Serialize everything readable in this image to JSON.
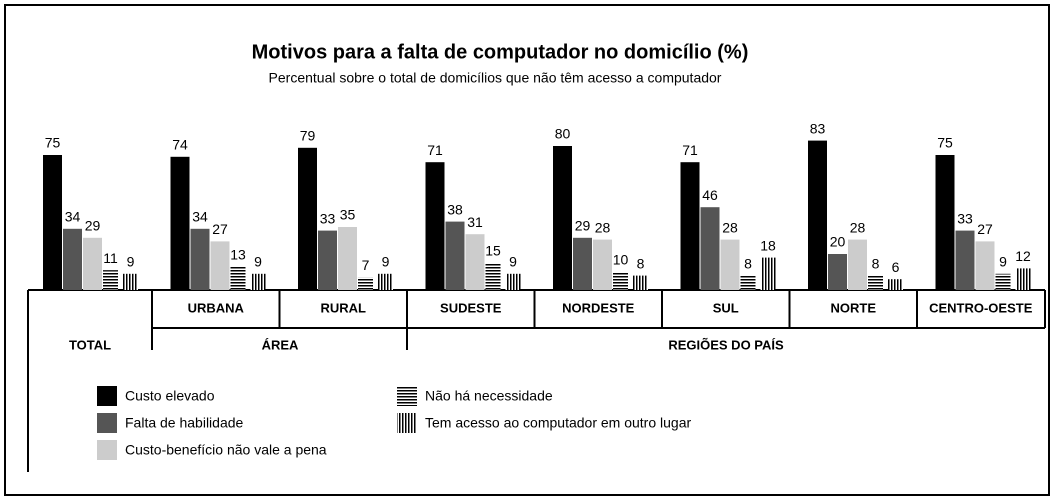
{
  "chart_data": {
    "type": "bar",
    "title": "Motivos para a falta de computador no domicílio (%)",
    "subtitle": "Percentual sobre o total de domicílios que não têm acesso a computador",
    "categories": [
      "TOTAL",
      "URBANA",
      "RURAL",
      "SUDESTE",
      "NORDESTE",
      "SUL",
      "NORTE",
      "CENTRO-OESTE"
    ],
    "groups": [
      "ÁREA",
      "REGIÕES DO PAÍS"
    ],
    "series": [
      {
        "name": "Custo elevado",
        "color": "#000000",
        "values": [
          75,
          74,
          79,
          71,
          80,
          71,
          83,
          75
        ]
      },
      {
        "name": "Falta de habilidade",
        "color": "#555555",
        "values": [
          34,
          34,
          33,
          38,
          29,
          46,
          20,
          33
        ]
      },
      {
        "name": "Custo-benefício não vale a pena",
        "color": "#cccccc",
        "values": [
          29,
          27,
          35,
          31,
          28,
          28,
          28,
          27
        ]
      },
      {
        "name": "Não há necessidade",
        "color": "#000000",
        "pattern": "horizontal",
        "values": [
          11,
          13,
          7,
          15,
          10,
          8,
          8,
          9
        ]
      },
      {
        "name": "Tem acesso ao computador em outro lugar",
        "color": "#000000",
        "pattern": "vertical",
        "values": [
          9,
          9,
          9,
          9,
          8,
          18,
          6,
          12
        ]
      }
    ]
  }
}
